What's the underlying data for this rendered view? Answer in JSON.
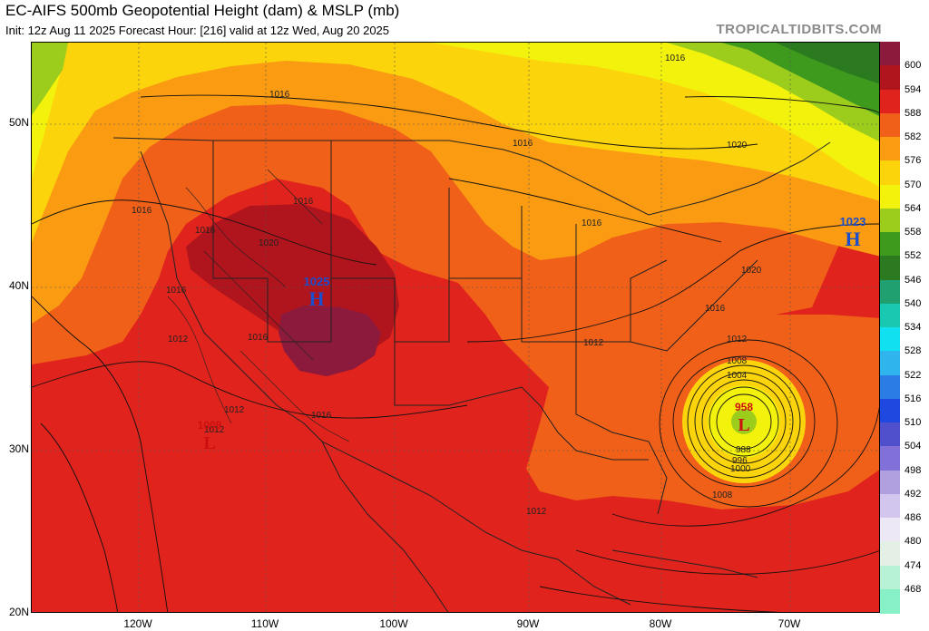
{
  "header": {
    "title": "EC-AIFS 500mb Geopotential Height (dam) & MSLP (mb)",
    "subtitle": "Init: 12z Aug 11 2025    Forecast Hour: [216]    valid at 12z Wed, Aug 20 2025",
    "site": "TROPICALTIDBITS.COM"
  },
  "axes": {
    "lat_labels": [
      "50N",
      "40N",
      "30N",
      "20N"
    ],
    "lon_labels": [
      "120W",
      "110W",
      "100W",
      "90W",
      "80W",
      "70W"
    ]
  },
  "colorbar": {
    "labels": [
      "600",
      "594",
      "588",
      "582",
      "576",
      "570",
      "564",
      "558",
      "552",
      "546",
      "540",
      "534",
      "528",
      "522",
      "516",
      "510",
      "504",
      "498",
      "492",
      "486",
      "480",
      "474",
      "468"
    ],
    "colors": [
      "#8c1a3c",
      "#b0141c",
      "#e0231c",
      "#f06018",
      "#fa9b12",
      "#fcd40c",
      "#f2f20c",
      "#9ccc1c",
      "#3e9a1c",
      "#2b7a20",
      "#20a070",
      "#18c8b0",
      "#10e0f0",
      "#30b4ee",
      "#2c7ce6",
      "#1e48e0",
      "#5050cc",
      "#8070d8",
      "#b0a0e0",
      "#d2c6ee",
      "#ece8f6",
      "#e4f0e6",
      "#b8f2d4",
      "#88f0c6"
    ]
  },
  "pressure_centers": [
    {
      "type": "H",
      "value": "1025",
      "color": "#1a4ecc"
    },
    {
      "type": "H",
      "value": "1023",
      "color": "#1a4ecc"
    },
    {
      "type": "L",
      "value": "958",
      "color": "#cc1010"
    },
    {
      "type": "L",
      "value": "1009",
      "color": "#cc1010"
    }
  ],
  "isobar_labels": [
    "1016",
    "1016",
    "1016",
    "1016",
    "1016",
    "1016",
    "1016",
    "1016",
    "1016",
    "1020",
    "1020",
    "1020",
    "1012",
    "1012",
    "1012",
    "1012",
    "1012",
    "1012",
    "1008",
    "1008",
    "1004",
    "1000",
    "996",
    "988",
    "1016",
    "1016"
  ]
}
